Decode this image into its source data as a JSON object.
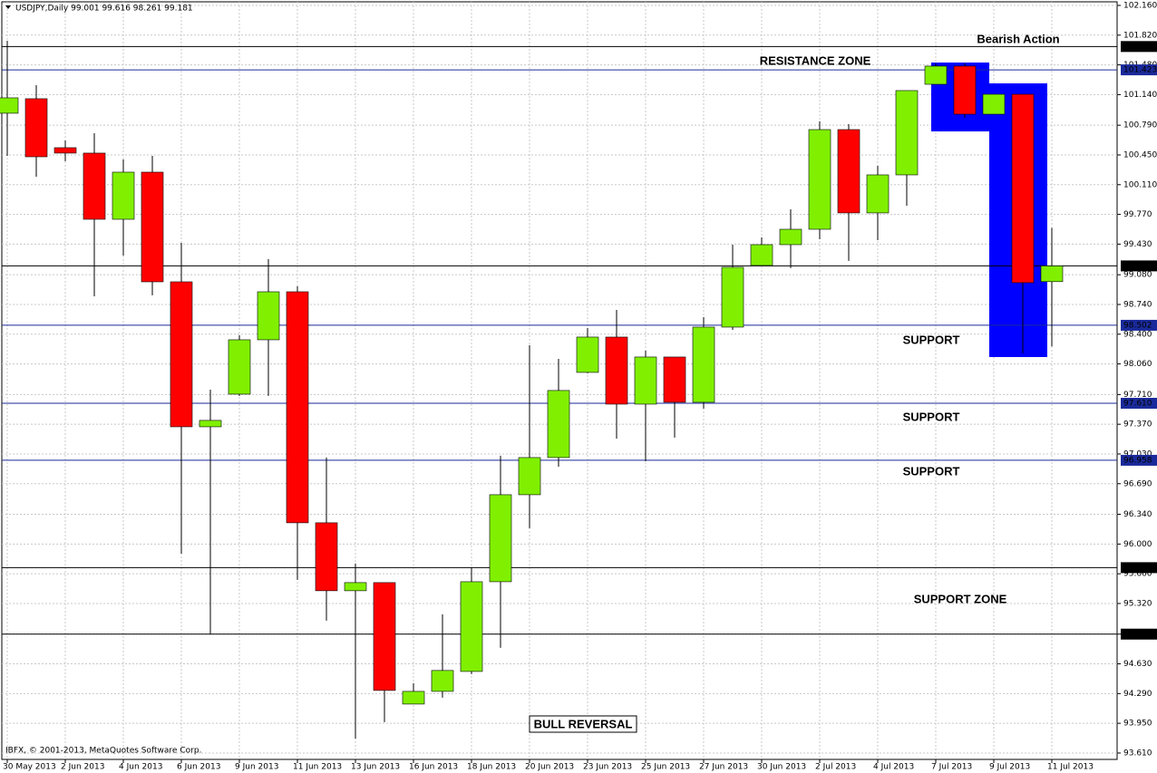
{
  "chart_data": {
    "type": "candlestick",
    "title": "USDJPY,Daily  99.001 99.616 98.261 99.181",
    "footer": "IBFX, © 2001-2013, MetaQuotes Software Corp.",
    "categories": [
      "30 May 2013",
      null,
      "2 Jun 2013",
      null,
      "4 Jun 2013",
      null,
      "6 Jun 2013",
      null,
      "9 Jun 2013",
      null,
      "11 Jun 2013",
      null,
      "13 Jun 2013",
      null,
      "16 Jun 2013",
      null,
      "18 Jun 2013",
      null,
      "20 Jun 2013",
      null,
      "23 Jun 2013",
      null,
      "25 Jun 2013",
      null,
      "27 Jun 2013",
      null,
      "30 Jun 2013",
      null,
      "2 Jul 2013",
      null,
      "4 Jul 2013",
      null,
      "7 Jul 2013",
      null,
      "9 Jul 2013",
      null,
      "11 Jul 2013"
    ],
    "open": [
      100.927,
      101.093,
      100.533,
      100.471,
      99.714,
      100.253,
      98.999,
      97.341,
      97.714,
      98.336,
      98.885,
      96.243,
      95.466,
      95.559,
      94.17,
      94.315,
      94.543,
      95.569,
      96.564,
      96.989,
      97.963,
      98.367,
      97.6,
      98.139,
      97.621,
      98.481,
      99.186,
      99.424,
      99.6,
      100.74,
      99.787,
      100.222,
      101.258,
      101.466,
      100.916,
      101.144,
      99.001
    ],
    "high": [
      101.756,
      101.248,
      100.616,
      100.699,
      100.398,
      100.44,
      99.445,
      97.766,
      98.388,
      99.258,
      98.947,
      96.989,
      95.777,
      95.559,
      94.408,
      95.196,
      95.735,
      97.01,
      98.274,
      98.118,
      98.471,
      98.678,
      98.212,
      98.139,
      98.595,
      99.424,
      99.507,
      99.828,
      100.834,
      100.802,
      100.326,
      101.186,
      101.497,
      101.497,
      101.144,
      101.144,
      99.616
    ],
    "low": [
      100.44,
      100.201,
      100.378,
      98.833,
      99.3,
      98.844,
      95.89,
      94.968,
      97.694,
      97.694,
      95.59,
      95.124,
      93.776,
      93.963,
      94.17,
      94.243,
      94.512,
      94.813,
      96.181,
      96.885,
      97.953,
      97.206,
      96.947,
      97.217,
      97.549,
      98.45,
      99.186,
      99.155,
      99.486,
      99.238,
      99.476,
      99.87,
      101.258,
      100.875,
      100.916,
      98.181,
      98.261
    ],
    "close": [
      101.103,
      100.429,
      100.471,
      99.714,
      100.253,
      98.999,
      97.341,
      97.414,
      98.336,
      98.885,
      96.243,
      95.466,
      95.559,
      94.326,
      94.315,
      94.554,
      95.569,
      96.564,
      96.989,
      97.756,
      98.367,
      97.6,
      98.139,
      97.621,
      98.481,
      99.165,
      99.424,
      99.6,
      100.74,
      99.787,
      100.222,
      101.186,
      101.466,
      100.916,
      101.144,
      98.989,
      99.181
    ],
    "up_color": "#80f000",
    "down_color": "#ff0000",
    "ylim": [
      93.537,
      102.222
    ],
    "yticks": [
      {
        "value": 102.16,
        "label": "102.160"
      },
      {
        "value": 101.82,
        "label": "101.820"
      },
      {
        "value": 101.48,
        "label": "101.480"
      },
      {
        "value": 101.14,
        "label": "101.140"
      },
      {
        "value": 100.79,
        "label": "100.790"
      },
      {
        "value": 100.45,
        "label": "100.450"
      },
      {
        "value": 100.11,
        "label": "100.110"
      },
      {
        "value": 99.77,
        "label": "99.770"
      },
      {
        "value": 99.43,
        "label": "99.430"
      },
      {
        "value": 99.08,
        "label": "99.080"
      },
      {
        "value": 98.74,
        "label": "98.740"
      },
      {
        "value": 98.4,
        "label": "98.400"
      },
      {
        "value": 98.06,
        "label": "98.060"
      },
      {
        "value": 97.71,
        "label": "97.710"
      },
      {
        "value": 97.37,
        "label": "97.370"
      },
      {
        "value": 97.03,
        "label": "97.030"
      },
      {
        "value": 96.69,
        "label": "96.690"
      },
      {
        "value": 96.34,
        "label": "96.340"
      },
      {
        "value": 96.0,
        "label": "96.000"
      },
      {
        "value": 95.66,
        "label": "95.660"
      },
      {
        "value": 95.32,
        "label": "95.320"
      },
      {
        "value": 94.97,
        "label": "94.970"
      },
      {
        "value": 94.63,
        "label": "94.630"
      },
      {
        "value": 94.29,
        "label": "94.290"
      },
      {
        "value": 93.95,
        "label": "93.950"
      },
      {
        "value": 93.61,
        "label": "93.610"
      }
    ],
    "grid": true,
    "levels": [
      {
        "value": 101.69,
        "label": "101.690",
        "color": "#000000"
      },
      {
        "value": 101.423,
        "label": "101.423",
        "color": "#1a2a9a"
      },
      {
        "value": 99.181,
        "label": "99.181",
        "color": "#000000"
      },
      {
        "value": 98.502,
        "label": "98.502",
        "color": "#1a2a9a"
      },
      {
        "value": 97.61,
        "label": "97.610",
        "color": "#1a2a9a"
      },
      {
        "value": 96.958,
        "label": "96.958",
        "color": "#1a2a9a"
      },
      {
        "value": 95.73,
        "label": "95.730",
        "color": "#000000"
      },
      {
        "value": 94.97,
        "label": "94.970",
        "color": "#000000"
      }
    ],
    "annotations": [
      "Bearish Action",
      "RESISTANCE ZONE",
      "SUPPORT",
      "SUPPORT",
      "SUPPORT",
      "SUPPORT ZONE",
      "BULL REVERSAL"
    ]
  }
}
